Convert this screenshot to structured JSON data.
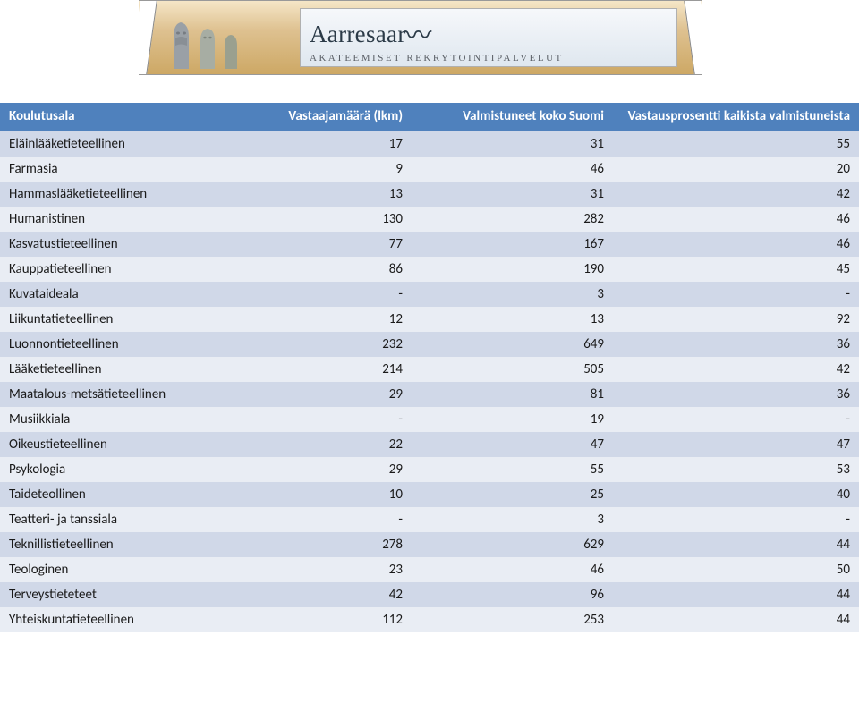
{
  "banner": {
    "brand_left": "Aarresaar",
    "tagline": "Akateemiset rekrytointipalvelut"
  },
  "table": {
    "header_bg": "#4f81bd",
    "header_color": "#ffffff",
    "row_odd_bg": "#d0d8e8",
    "row_even_bg": "#e9edf4",
    "font_size_pt": 11,
    "columns": [
      "Koulutusala",
      "Vastaajamäärä (lkm)",
      "Valmistuneet koko Suomi",
      "Vastausprosentti kaikista valmistuneista"
    ],
    "rows": [
      {
        "label": "Eläinlääketieteellinen",
        "c1": "17",
        "c2": "31",
        "c3": "55"
      },
      {
        "label": "Farmasia",
        "c1": "9",
        "c2": "46",
        "c3": "20"
      },
      {
        "label": "Hammaslääketieteellinen",
        "c1": "13",
        "c2": "31",
        "c3": "42"
      },
      {
        "label": "Humanistinen",
        "c1": "130",
        "c2": "282",
        "c3": "46"
      },
      {
        "label": "Kasvatustieteellinen",
        "c1": "77",
        "c2": "167",
        "c3": "46"
      },
      {
        "label": "Kauppatieteellinen",
        "c1": "86",
        "c2": "190",
        "c3": "45"
      },
      {
        "label": "Kuvataideala",
        "c1": "-",
        "c2": "3",
        "c3": "-"
      },
      {
        "label": "Liikuntatieteellinen",
        "c1": "12",
        "c2": "13",
        "c3": "92"
      },
      {
        "label": "Luonnontieteellinen",
        "c1": "232",
        "c2": "649",
        "c3": "36"
      },
      {
        "label": "Lääketieteellinen",
        "c1": "214",
        "c2": "505",
        "c3": "42"
      },
      {
        "label": "Maatalous-metsätieteellinen",
        "c1": "29",
        "c2": "81",
        "c3": "36"
      },
      {
        "label": "Musiikkiala",
        "c1": "-",
        "c2": "19",
        "c3": "-"
      },
      {
        "label": "Oikeustieteellinen",
        "c1": "22",
        "c2": "47",
        "c3": "47"
      },
      {
        "label": "Psykologia",
        "c1": "29",
        "c2": "55",
        "c3": "53"
      },
      {
        "label": "Taideteollinen",
        "c1": "10",
        "c2": "25",
        "c3": "40"
      },
      {
        "label": "Teatteri- ja tanssiala",
        "c1": "-",
        "c2": "3",
        "c3": "-"
      },
      {
        "label": "Teknillistieteellinen",
        "c1": "278",
        "c2": "629",
        "c3": "44"
      },
      {
        "label": "Teologinen",
        "c1": "23",
        "c2": "46",
        "c3": "50"
      },
      {
        "label": "Terveystieteteet",
        "c1": "42",
        "c2": "96",
        "c3": "44"
      },
      {
        "label": "Yhteiskuntatieteellinen",
        "c1": "112",
        "c2": "253",
        "c3": "44"
      }
    ]
  }
}
